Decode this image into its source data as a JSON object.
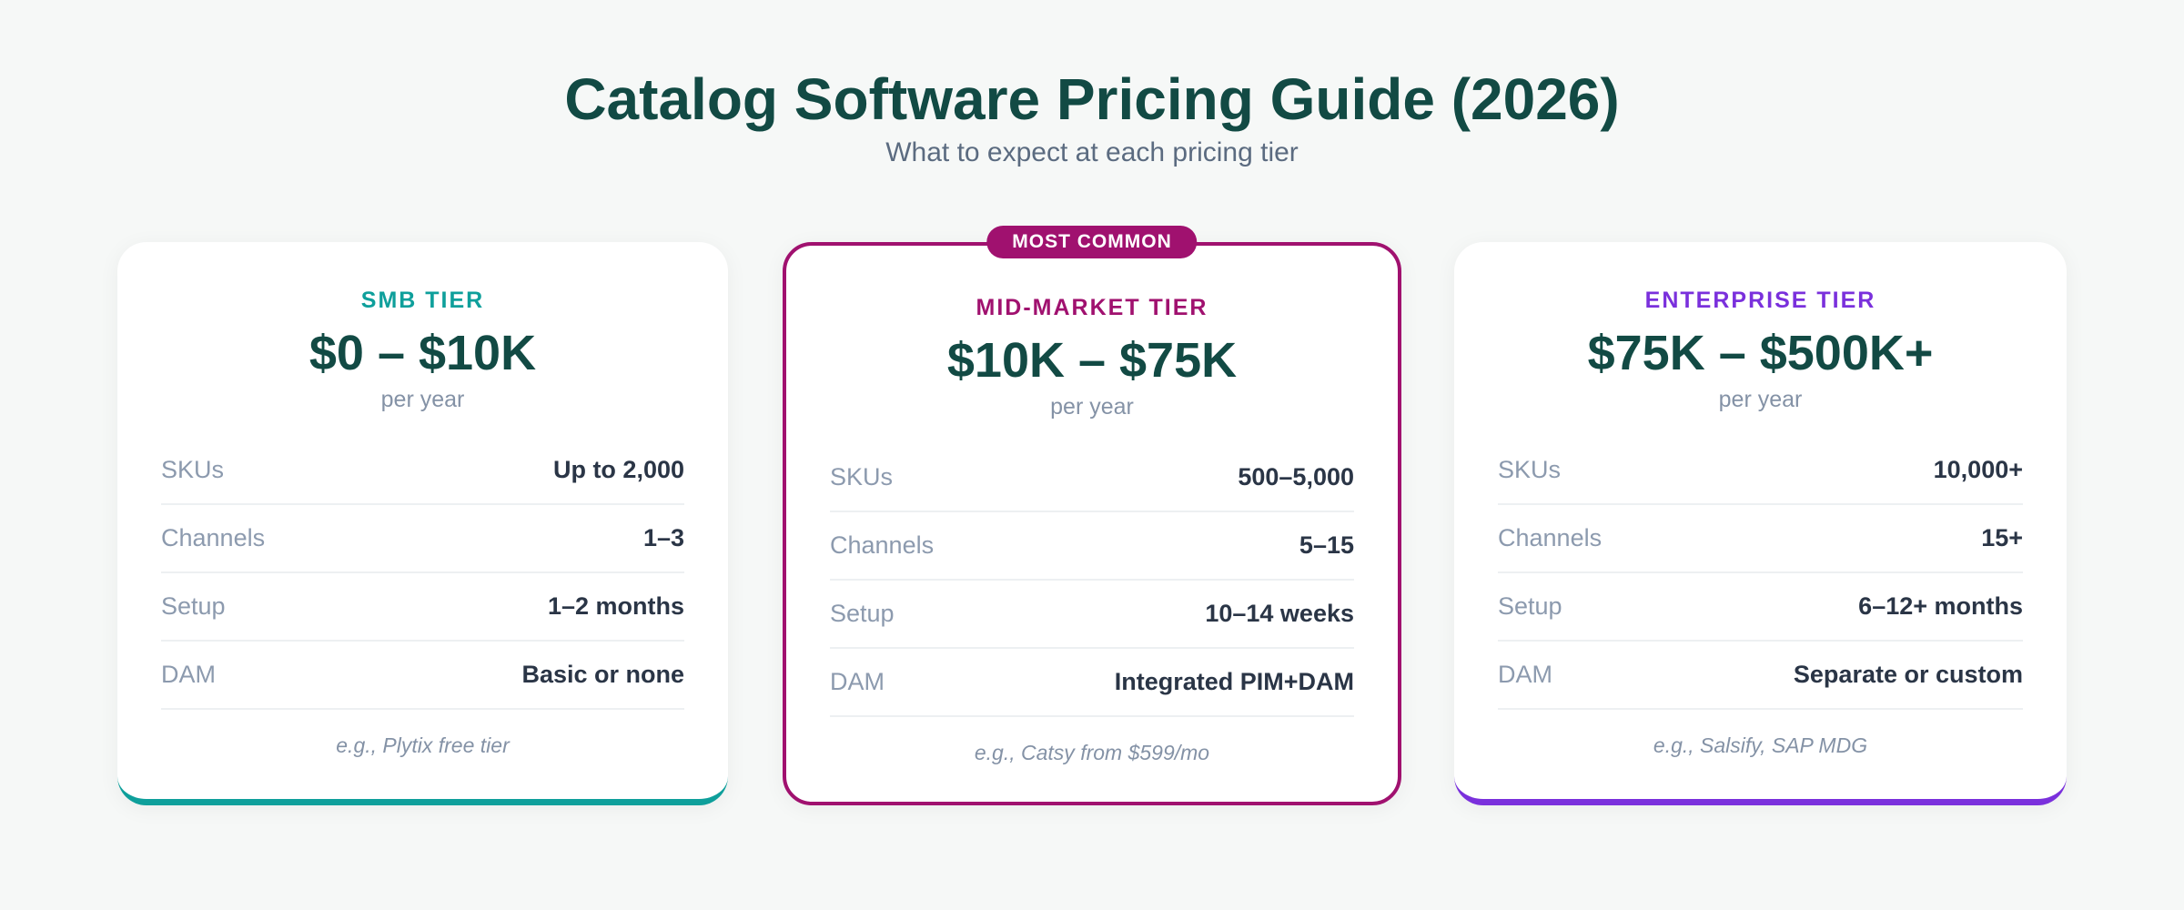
{
  "header": {
    "title": "Catalog Software Pricing Guide (2026)",
    "subtitle": "What to expect at each pricing tier"
  },
  "tiers": [
    {
      "label": "SMB TIER",
      "price": "$0 – $10K",
      "period": "per year",
      "accent": "#0e9f9b",
      "rows": [
        {
          "label": "SKUs",
          "value": "Up to 2,000"
        },
        {
          "label": "Channels",
          "value": "1–3"
        },
        {
          "label": "Setup",
          "value": "1–2 months"
        },
        {
          "label": "DAM",
          "value": "Basic or none"
        }
      ],
      "example": "e.g., Plytix free tier"
    },
    {
      "badge": "MOST COMMON",
      "label": "MID-MARKET TIER",
      "price": "$10K – $75K",
      "period": "per year",
      "accent": "#a0116f",
      "rows": [
        {
          "label": "SKUs",
          "value": "500–5,000"
        },
        {
          "label": "Channels",
          "value": "5–15"
        },
        {
          "label": "Setup",
          "value": "10–14 weeks"
        },
        {
          "label": "DAM",
          "value": "Integrated PIM+DAM"
        }
      ],
      "example": "e.g., Catsy from $599/mo"
    },
    {
      "label": "ENTERPRISE TIER",
      "price": "$75K – $500K+",
      "period": "per year",
      "accent": "#7a30dc",
      "rows": [
        {
          "label": "SKUs",
          "value": "10,000+"
        },
        {
          "label": "Channels",
          "value": "15+"
        },
        {
          "label": "Setup",
          "value": "6–12+ months"
        },
        {
          "label": "DAM",
          "value": "Separate or custom"
        }
      ],
      "example": "e.g., Salsify, SAP MDG"
    }
  ]
}
